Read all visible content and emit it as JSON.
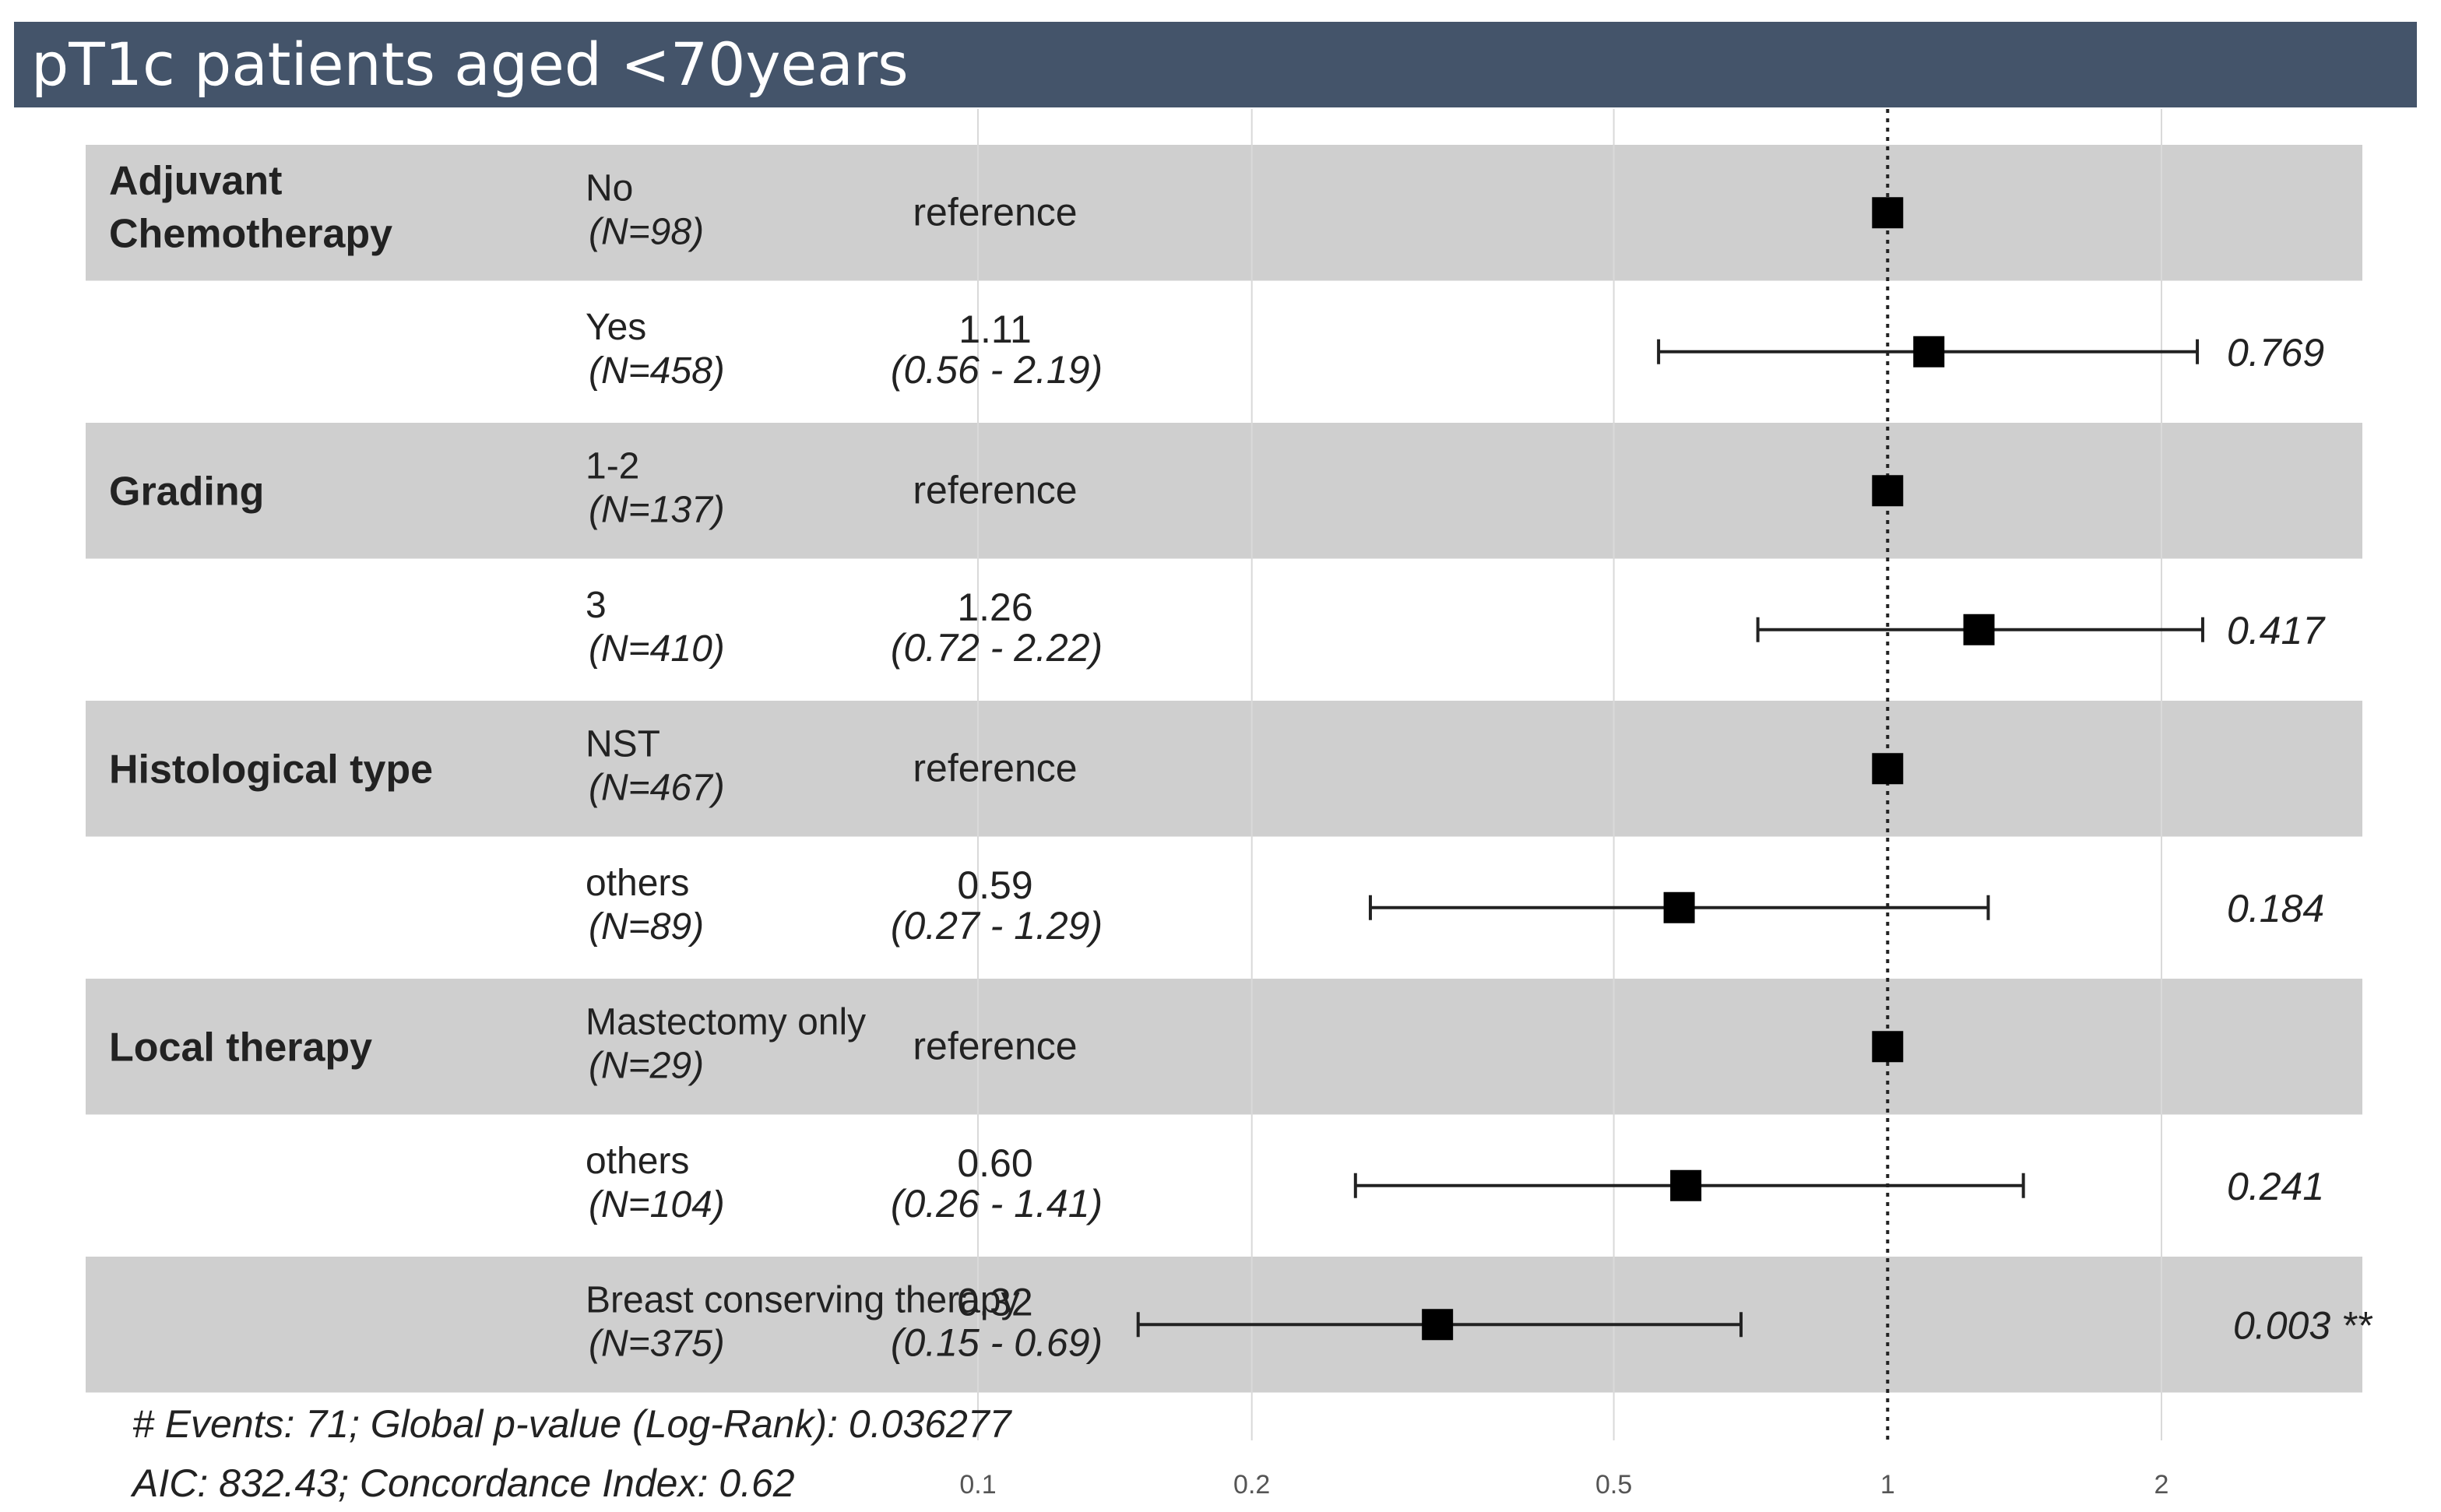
{
  "title": "pT1c patients aged <70years",
  "chart_data": {
    "type": "forest",
    "x_scale": "log",
    "xlim": [
      0.08,
      3.0
    ],
    "reference_line": 1,
    "x_ticks": [
      {
        "value": 0.1,
        "label": "0.1"
      },
      {
        "value": 0.2,
        "label": "0.2"
      },
      {
        "value": 0.5,
        "label": "0.5"
      },
      {
        "value": 1,
        "label": "1"
      },
      {
        "value": 2,
        "label": "2"
      }
    ],
    "rows": [
      {
        "variable": "Adjuvant Chemotherapy",
        "level": "No",
        "n": "(N=98)",
        "hr": 1,
        "reference": true,
        "estimate_text": "reference",
        "ci_text": "",
        "p": "",
        "shaded": true
      },
      {
        "variable": "",
        "level": "Yes",
        "n": "(N=458)",
        "hr": 1.11,
        "lo": 0.56,
        "hi": 2.19,
        "reference": false,
        "estimate_text": "1.11",
        "ci_text": "(0.56 - 2.19)",
        "p": "0.769",
        "shaded": false
      },
      {
        "variable": "Grading",
        "level": "1-2",
        "n": "(N=137)",
        "hr": 1,
        "reference": true,
        "estimate_text": "reference",
        "ci_text": "",
        "p": "",
        "shaded": true
      },
      {
        "variable": "",
        "level": "3",
        "n": "(N=410)",
        "hr": 1.26,
        "lo": 0.72,
        "hi": 2.22,
        "reference": false,
        "estimate_text": "1.26",
        "ci_text": "(0.72 - 2.22)",
        "p": "0.417",
        "shaded": false
      },
      {
        "variable": "Histological type",
        "level": "NST",
        "n": "(N=467)",
        "hr": 1,
        "reference": true,
        "estimate_text": "reference",
        "ci_text": "",
        "p": "",
        "shaded": true
      },
      {
        "variable": "",
        "level": "others",
        "n": "(N=89)",
        "hr": 0.59,
        "lo": 0.27,
        "hi": 1.29,
        "reference": false,
        "estimate_text": "0.59",
        "ci_text": "(0.27 - 1.29)",
        "p": "0.184",
        "shaded": false
      },
      {
        "variable": "Local therapy",
        "level": "Mastectomy only",
        "n": "(N=29)",
        "hr": 1,
        "reference": true,
        "estimate_text": "reference",
        "ci_text": "",
        "p": "",
        "shaded": true
      },
      {
        "variable": "",
        "level": "others",
        "n": "(N=104)",
        "hr": 0.6,
        "lo": 0.26,
        "hi": 1.41,
        "reference": false,
        "estimate_text": "0.60",
        "ci_text": "(0.26 - 1.41)",
        "p": "0.241",
        "shaded": false
      },
      {
        "variable": "",
        "level": "Breast conserving therapy",
        "n": "(N=375)",
        "hr": 0.32,
        "lo": 0.15,
        "hi": 0.69,
        "reference": false,
        "estimate_text": "0.32",
        "ci_text": "(0.15 - 0.69)",
        "p": "0.003 **",
        "shaded": true
      }
    ],
    "footer": [
      "# Events: 71; Global p-value (Log-Rank): 0.036277",
      "AIC: 832.43; Concordance Index: 0.62"
    ]
  }
}
